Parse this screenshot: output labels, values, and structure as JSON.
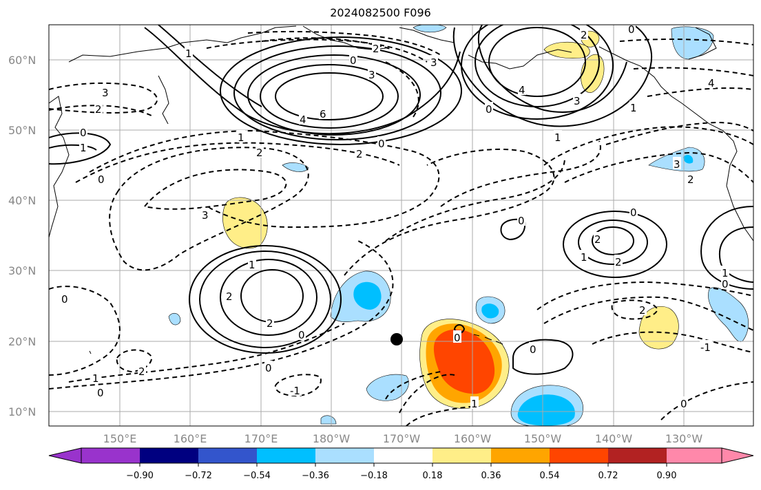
{
  "title": "2024082500 F096",
  "lat_labels": [
    "60°N",
    "50°N",
    "40°N",
    "30°N",
    "20°N",
    "10°N"
  ],
  "lon_labels": [
    "150°E",
    "160°E",
    "170°E",
    "180°W",
    "170°W",
    "160°W",
    "150°W",
    "140°W",
    "130°W"
  ],
  "colorbar": {
    "ticks": [
      "−0.90",
      "−0.72",
      "−0.54",
      "−0.36",
      "−0.18",
      "0.18",
      "0.36",
      "0.54",
      "0.72",
      "0.90"
    ],
    "colors": [
      "#9933cc",
      "#000080",
      "#3355cc",
      "#00bfff",
      "#aadfff",
      "#ffffff",
      "#ffee88",
      "#ffa500",
      "#ff4500",
      "#b22222",
      "#ff88aa"
    ]
  },
  "contour_labels": {
    "c1": "3",
    "c2": "2",
    "c3": "0",
    "c4": "1",
    "c5": "0",
    "c6": "2",
    "c7": "1",
    "c8": "0",
    "c9": "3",
    "c10": "4",
    "c11": "6",
    "c12": "2",
    "c13": "0",
    "c14": "2",
    "c15": "3",
    "c16": "4",
    "c17": "0",
    "c18": "2",
    "c19": "0",
    "c20": "3",
    "c21": "1",
    "c22": "2",
    "c23": "0",
    "c24": "3",
    "c25": "1",
    "c26": "2",
    "c27": "0",
    "c28": "1",
    "c29": "0",
    "c30": "2",
    "c31": "1",
    "c32": "3",
    "c33": "0",
    "c34": "2",
    "c35": "2",
    "c36": "1",
    "c37": "0",
    "c38": "2",
    "c39": "0",
    "c40": "0",
    "c41": "1",
    "c42": "-1",
    "c43": "0",
    "c44": "2",
    "c45": "1",
    "c46": "0",
    "c47": "1",
    "c48": "-1",
    "c49": "0",
    "c50": "4"
  },
  "marker": "storm-center-dot"
}
